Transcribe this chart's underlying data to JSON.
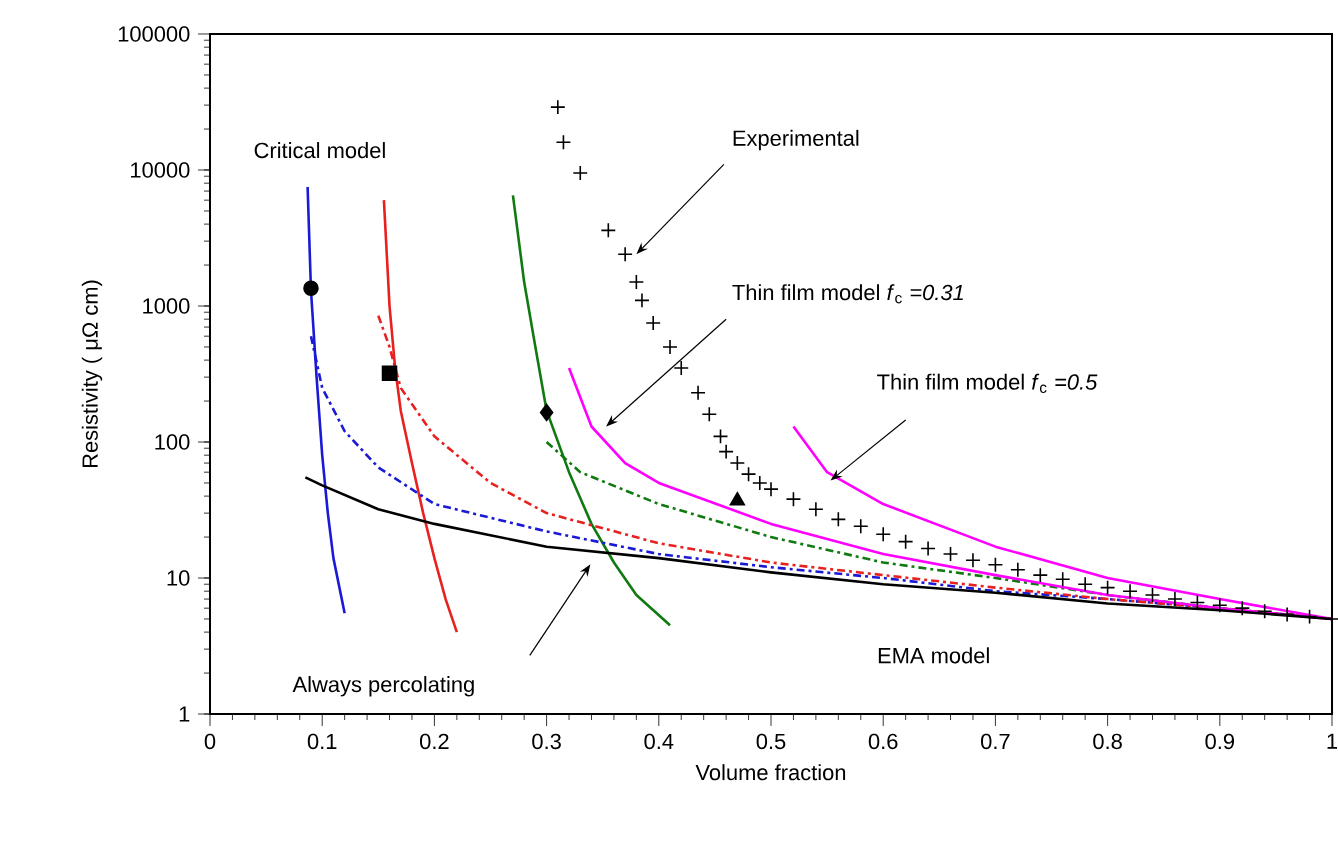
{
  "chart_data": {
    "type": "line",
    "xlabel": "Volume fraction",
    "ylabel": "Resistivity ( μΩ cm)",
    "log": "y",
    "xlim": [
      0,
      1
    ],
    "xticks": [
      0,
      0.1,
      0.2,
      0.3,
      0.4,
      0.5,
      0.6,
      0.7,
      0.8,
      0.9,
      1
    ],
    "ylim": [
      1,
      100000
    ],
    "yticks": [
      1,
      10,
      100,
      1000,
      10000,
      100000
    ],
    "series": [
      {
        "color": "#1a1ad6",
        "line_style": "solid",
        "x": [
          0.087,
          0.09,
          0.095,
          0.1,
          0.105,
          0.11,
          0.12
        ],
        "values": [
          7500,
          1300,
          300,
          80,
          30,
          14,
          5.5
        ]
      },
      {
        "color": "#e8201e",
        "line_style": "solid",
        "x": [
          0.155,
          0.16,
          0.165,
          0.17,
          0.18,
          0.19,
          0.2,
          0.21,
          0.22
        ],
        "values": [
          6000,
          1000,
          350,
          170,
          70,
          30,
          14,
          7,
          4
        ]
      },
      {
        "color": "#107a10",
        "line_style": "solid",
        "x": [
          0.27,
          0.28,
          0.29,
          0.3,
          0.32,
          0.34,
          0.36,
          0.38,
          0.41
        ],
        "values": [
          6500,
          1500,
          500,
          170,
          60,
          25,
          13,
          7.5,
          4.5
        ]
      },
      {
        "color": "#1a1ad6",
        "line_style": "dashed",
        "x": [
          0.09,
          0.1,
          0.12,
          0.15,
          0.2,
          0.3,
          0.4,
          0.5,
          0.6,
          0.7,
          0.8,
          0.9,
          1
        ],
        "values": [
          600,
          250,
          120,
          65,
          35,
          22,
          15,
          12,
          10,
          8,
          7,
          6,
          5
        ]
      },
      {
        "color": "#e8201e",
        "line_style": "dashed",
        "x": [
          0.15,
          0.16,
          0.17,
          0.2,
          0.25,
          0.3,
          0.4,
          0.5,
          0.6,
          0.7,
          0.8,
          0.9,
          1
        ],
        "values": [
          850,
          500,
          250,
          110,
          50,
          30,
          18,
          13,
          10.5,
          8.5,
          7,
          6,
          5
        ]
      },
      {
        "color": "#107a10",
        "line_style": "dashed",
        "x": [
          0.3,
          0.33,
          0.4,
          0.5,
          0.6,
          0.7,
          0.8,
          0.9,
          1
        ],
        "values": [
          100,
          60,
          35,
          20,
          13,
          10,
          7.5,
          6,
          5
        ]
      },
      {
        "color": "#ff00ff",
        "line_style": "solid",
        "x": [
          0.32,
          0.34,
          0.37,
          0.4,
          0.5,
          0.6,
          0.7,
          0.8,
          0.9,
          1
        ],
        "values": [
          350,
          130,
          70,
          50,
          25,
          15,
          10.5,
          7.5,
          6,
          5
        ]
      },
      {
        "color": "#ff00ff",
        "line_style": "solid",
        "x": [
          0.52,
          0.55,
          0.6,
          0.7,
          0.8,
          0.9,
          1
        ],
        "values": [
          130,
          60,
          35,
          17,
          10,
          7,
          5
        ]
      },
      {
        "color": "#000000",
        "line_style": "solid",
        "x": [
          0.085,
          0.1,
          0.15,
          0.2,
          0.3,
          0.4,
          0.5,
          0.6,
          0.7,
          0.8,
          0.9,
          1
        ],
        "values": [
          55,
          48,
          32,
          25,
          17,
          14,
          11,
          9,
          7.8,
          6.5,
          5.8,
          5
        ]
      },
      {
        "type": "scatter",
        "color": "#000000",
        "marker": "cross",
        "x": [
          0.31,
          0.315,
          0.33,
          0.355,
          0.37,
          0.38,
          0.385,
          0.395,
          0.41,
          0.42,
          0.435,
          0.445,
          0.455,
          0.46,
          0.47,
          0.48,
          0.49,
          0.5,
          0.52,
          0.54,
          0.56,
          0.58,
          0.6,
          0.62,
          0.64,
          0.66,
          0.68,
          0.7,
          0.72,
          0.74,
          0.76,
          0.78,
          0.8,
          0.82,
          0.84,
          0.86,
          0.88,
          0.9,
          0.92,
          0.94,
          0.96,
          0.98,
          1
        ],
        "values": [
          29000,
          16000,
          9500,
          3600,
          2400,
          1500,
          1100,
          750,
          500,
          350,
          230,
          160,
          110,
          85,
          70,
          58,
          50,
          45,
          38,
          32,
          27,
          24,
          21,
          18.5,
          16.5,
          15,
          13.5,
          12.5,
          11.5,
          10.5,
          9.8,
          9,
          8.5,
          8,
          7.5,
          7,
          6.6,
          6.3,
          6,
          5.7,
          5.4,
          5.2,
          5
        ]
      },
      {
        "type": "scatter",
        "color": "#000000",
        "marker": "circle",
        "x": [
          0.09
        ],
        "values": [
          1350
        ]
      },
      {
        "type": "scatter",
        "color": "#000000",
        "marker": "square",
        "x": [
          0.16
        ],
        "values": [
          320
        ]
      },
      {
        "type": "scatter",
        "color": "#000000",
        "marker": "diamond",
        "x": [
          0.3
        ],
        "values": [
          165
        ]
      },
      {
        "type": "scatter",
        "color": "#000000",
        "marker": "triangle",
        "x": [
          0.47
        ],
        "values": [
          37
        ]
      }
    ],
    "annotations": [
      "Critical model",
      {
        "text": "Experimental",
        "x": 0.38,
        "y": 2400
      },
      {
        "text": "Thin film model *f*$_{c}$ *=0.31*",
        "x": 0.353,
        "y": 130
      },
      {
        "text": "Thin film model *f*$_{c}$ *=0.5*",
        "x": 0.553,
        "y": 52
      },
      "Always percolating",
      "EMA model"
    ]
  }
}
